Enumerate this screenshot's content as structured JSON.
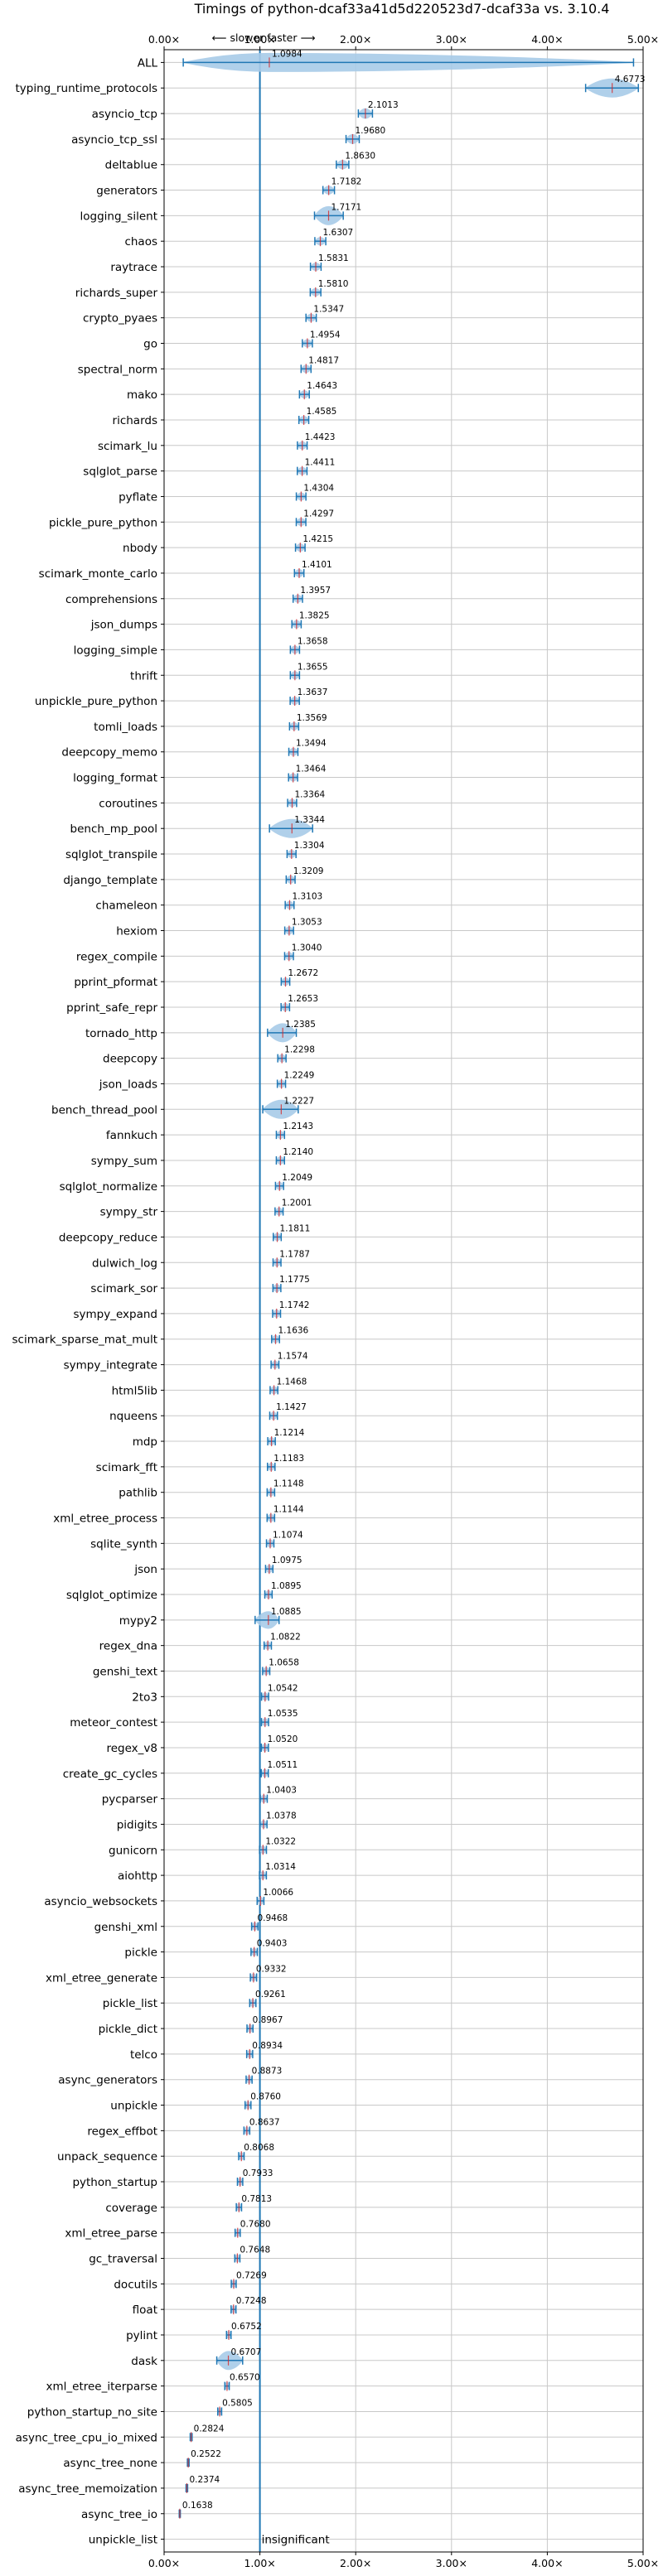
{
  "chart_data": {
    "type": "violin",
    "title": "Timings of python-dcaf33a41d5d220523d7-dcaf33a vs. 3.10.4",
    "direction_note": "⟵ slower   faster ⟶",
    "xlim": [
      0,
      5
    ],
    "xticks": [
      0,
      1,
      2,
      3,
      4,
      5
    ],
    "xtick_labels": [
      "0.00×",
      "1.00×",
      "2.00×",
      "3.00×",
      "4.00×",
      "5.00×"
    ],
    "grid": true,
    "reference_line": 1.0,
    "colors": {
      "violin": "#a8cbe8",
      "stroke": "#1f77b4",
      "median": "#d62728",
      "grid": "#c8c8c8",
      "reference": "#1f77b4"
    },
    "benchmarks": [
      {
        "name": "ALL",
        "value": 1.0984,
        "label": "1.0984",
        "lo": 0.2,
        "hi": 4.9
      },
      {
        "name": "typing_runtime_protocols",
        "value": 4.6773,
        "label": "4.6773",
        "lo": 4.4,
        "hi": 4.95
      },
      {
        "name": "asyncio_tcp",
        "value": 2.1013,
        "label": "2.1013"
      },
      {
        "name": "asyncio_tcp_ssl",
        "value": 1.968,
        "label": "1.9680"
      },
      {
        "name": "deltablue",
        "value": 1.863,
        "label": "1.8630"
      },
      {
        "name": "generators",
        "value": 1.7182,
        "label": "1.7182"
      },
      {
        "name": "logging_silent",
        "value": 1.7171,
        "label": "1.7171",
        "lo": 1.57,
        "hi": 1.87
      },
      {
        "name": "chaos",
        "value": 1.6307,
        "label": "1.6307"
      },
      {
        "name": "raytrace",
        "value": 1.5831,
        "label": "1.5831"
      },
      {
        "name": "richards_super",
        "value": 1.581,
        "label": "1.5810"
      },
      {
        "name": "crypto_pyaes",
        "value": 1.5347,
        "label": "1.5347"
      },
      {
        "name": "go",
        "value": 1.4954,
        "label": "1.4954"
      },
      {
        "name": "spectral_norm",
        "value": 1.4817,
        "label": "1.4817"
      },
      {
        "name": "mako",
        "value": 1.4643,
        "label": "1.4643"
      },
      {
        "name": "richards",
        "value": 1.4585,
        "label": "1.4585"
      },
      {
        "name": "scimark_lu",
        "value": 1.4423,
        "label": "1.4423"
      },
      {
        "name": "sqlglot_parse",
        "value": 1.4411,
        "label": "1.4411"
      },
      {
        "name": "pyflate",
        "value": 1.4304,
        "label": "1.4304"
      },
      {
        "name": "pickle_pure_python",
        "value": 1.4297,
        "label": "1.4297"
      },
      {
        "name": "nbody",
        "value": 1.4215,
        "label": "1.4215"
      },
      {
        "name": "scimark_monte_carlo",
        "value": 1.4101,
        "label": "1.4101"
      },
      {
        "name": "comprehensions",
        "value": 1.3957,
        "label": "1.3957"
      },
      {
        "name": "json_dumps",
        "value": 1.3825,
        "label": "1.3825"
      },
      {
        "name": "logging_simple",
        "value": 1.3658,
        "label": "1.3658"
      },
      {
        "name": "thrift",
        "value": 1.3655,
        "label": "1.3655"
      },
      {
        "name": "unpickle_pure_python",
        "value": 1.3637,
        "label": "1.3637"
      },
      {
        "name": "tomli_loads",
        "value": 1.3569,
        "label": "1.3569"
      },
      {
        "name": "deepcopy_memo",
        "value": 1.3494,
        "label": "1.3494"
      },
      {
        "name": "logging_format",
        "value": 1.3464,
        "label": "1.3464"
      },
      {
        "name": "coroutines",
        "value": 1.3364,
        "label": "1.3364"
      },
      {
        "name": "bench_mp_pool",
        "value": 1.3344,
        "label": "1.3344",
        "lo": 1.1,
        "hi": 1.55
      },
      {
        "name": "sqlglot_transpile",
        "value": 1.3304,
        "label": "1.3304"
      },
      {
        "name": "django_template",
        "value": 1.3209,
        "label": "1.3209"
      },
      {
        "name": "chameleon",
        "value": 1.3103,
        "label": "1.3103"
      },
      {
        "name": "hexiom",
        "value": 1.3053,
        "label": "1.3053"
      },
      {
        "name": "regex_compile",
        "value": 1.304,
        "label": "1.3040"
      },
      {
        "name": "pprint_pformat",
        "value": 1.2672,
        "label": "1.2672"
      },
      {
        "name": "pprint_safe_repr",
        "value": 1.2653,
        "label": "1.2653"
      },
      {
        "name": "tornado_http",
        "value": 1.2385,
        "label": "1.2385",
        "lo": 1.08,
        "hi": 1.38
      },
      {
        "name": "deepcopy",
        "value": 1.2298,
        "label": "1.2298"
      },
      {
        "name": "json_loads",
        "value": 1.2249,
        "label": "1.2249"
      },
      {
        "name": "bench_thread_pool",
        "value": 1.2227,
        "label": "1.2227",
        "lo": 1.03,
        "hi": 1.4
      },
      {
        "name": "fannkuch",
        "value": 1.2143,
        "label": "1.2143"
      },
      {
        "name": "sympy_sum",
        "value": 1.214,
        "label": "1.2140"
      },
      {
        "name": "sqlglot_normalize",
        "value": 1.2049,
        "label": "1.2049"
      },
      {
        "name": "sympy_str",
        "value": 1.2001,
        "label": "1.2001"
      },
      {
        "name": "deepcopy_reduce",
        "value": 1.1811,
        "label": "1.1811"
      },
      {
        "name": "dulwich_log",
        "value": 1.1787,
        "label": "1.1787"
      },
      {
        "name": "scimark_sor",
        "value": 1.1775,
        "label": "1.1775"
      },
      {
        "name": "sympy_expand",
        "value": 1.1742,
        "label": "1.1742"
      },
      {
        "name": "scimark_sparse_mat_mult",
        "value": 1.1636,
        "label": "1.1636"
      },
      {
        "name": "sympy_integrate",
        "value": 1.1574,
        "label": "1.1574"
      },
      {
        "name": "html5lib",
        "value": 1.1468,
        "label": "1.1468"
      },
      {
        "name": "nqueens",
        "value": 1.1427,
        "label": "1.1427"
      },
      {
        "name": "mdp",
        "value": 1.1214,
        "label": "1.1214"
      },
      {
        "name": "scimark_fft",
        "value": 1.1183,
        "label": "1.1183"
      },
      {
        "name": "pathlib",
        "value": 1.1148,
        "label": "1.1148"
      },
      {
        "name": "xml_etree_process",
        "value": 1.1144,
        "label": "1.1144"
      },
      {
        "name": "sqlite_synth",
        "value": 1.1074,
        "label": "1.1074"
      },
      {
        "name": "json",
        "value": 1.0975,
        "label": "1.0975"
      },
      {
        "name": "sqlglot_optimize",
        "value": 1.0895,
        "label": "1.0895"
      },
      {
        "name": "mypy2",
        "value": 1.0885,
        "label": "1.0885",
        "lo": 0.95,
        "hi": 1.2
      },
      {
        "name": "regex_dna",
        "value": 1.0822,
        "label": "1.0822"
      },
      {
        "name": "genshi_text",
        "value": 1.0658,
        "label": "1.0658"
      },
      {
        "name": "2to3",
        "value": 1.0542,
        "label": "1.0542"
      },
      {
        "name": "meteor_contest",
        "value": 1.0535,
        "label": "1.0535"
      },
      {
        "name": "regex_v8",
        "value": 1.052,
        "label": "1.0520"
      },
      {
        "name": "create_gc_cycles",
        "value": 1.0511,
        "label": "1.0511"
      },
      {
        "name": "pycparser",
        "value": 1.0403,
        "label": "1.0403"
      },
      {
        "name": "pidigits",
        "value": 1.0378,
        "label": "1.0378"
      },
      {
        "name": "gunicorn",
        "value": 1.0322,
        "label": "1.0322"
      },
      {
        "name": "aiohttp",
        "value": 1.0314,
        "label": "1.0314"
      },
      {
        "name": "asyncio_websockets",
        "value": 1.0066,
        "label": "1.0066"
      },
      {
        "name": "genshi_xml",
        "value": 0.9468,
        "label": "0.9468"
      },
      {
        "name": "pickle",
        "value": 0.9403,
        "label": "0.9403"
      },
      {
        "name": "xml_etree_generate",
        "value": 0.9332,
        "label": "0.9332"
      },
      {
        "name": "pickle_list",
        "value": 0.9261,
        "label": "0.9261"
      },
      {
        "name": "pickle_dict",
        "value": 0.8967,
        "label": "0.8967"
      },
      {
        "name": "telco",
        "value": 0.8934,
        "label": "0.8934"
      },
      {
        "name": "async_generators",
        "value": 0.8873,
        "label": "0.8873"
      },
      {
        "name": "unpickle",
        "value": 0.876,
        "label": "0.8760"
      },
      {
        "name": "regex_effbot",
        "value": 0.8637,
        "label": "0.8637"
      },
      {
        "name": "unpack_sequence",
        "value": 0.8068,
        "label": "0.8068"
      },
      {
        "name": "python_startup",
        "value": 0.7933,
        "label": "0.7933"
      },
      {
        "name": "coverage",
        "value": 0.7813,
        "label": "0.7813"
      },
      {
        "name": "xml_etree_parse",
        "value": 0.768,
        "label": "0.7680"
      },
      {
        "name": "gc_traversal",
        "value": 0.7648,
        "label": "0.7648"
      },
      {
        "name": "docutils",
        "value": 0.7269,
        "label": "0.7269"
      },
      {
        "name": "float",
        "value": 0.7248,
        "label": "0.7248"
      },
      {
        "name": "pylint",
        "value": 0.6752,
        "label": "0.6752"
      },
      {
        "name": "dask",
        "value": 0.6707,
        "label": "0.6707",
        "lo": 0.55,
        "hi": 0.82
      },
      {
        "name": "xml_etree_iterparse",
        "value": 0.657,
        "label": "0.6570"
      },
      {
        "name": "python_startup_no_site",
        "value": 0.5805,
        "label": "0.5805"
      },
      {
        "name": "async_tree_cpu_io_mixed",
        "value": 0.2824,
        "label": "0.2824"
      },
      {
        "name": "async_tree_none",
        "value": 0.2522,
        "label": "0.2522"
      },
      {
        "name": "async_tree_memoization",
        "value": 0.2374,
        "label": "0.2374"
      },
      {
        "name": "async_tree_io",
        "value": 0.1638,
        "label": "0.1638"
      },
      {
        "name": "unpickle_list",
        "value": null,
        "label": "insignificant"
      }
    ]
  }
}
